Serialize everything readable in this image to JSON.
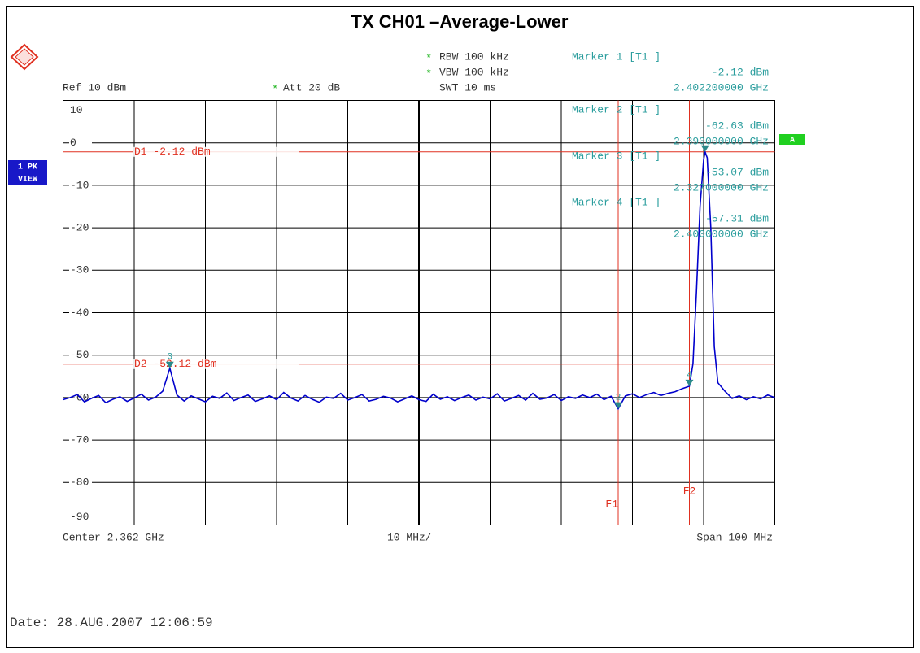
{
  "chart_data": {
    "type": "line",
    "title": "TX CH01 –Average-Lower",
    "settings": [
      {
        "star": "*",
        "text": "RBW 100 kHz"
      },
      {
        "star": "*",
        "text": "VBW 100 kHz"
      },
      {
        "star": "",
        "text": "SWT 10 ms"
      }
    ],
    "ref_label": "Ref  10 dBm",
    "att": {
      "star": "*",
      "text": "Att  20 dB"
    },
    "footer_left": "Center 2.362 GHz",
    "footer_mid": "10 MHz/",
    "footer_right": "Span 100 MHz",
    "date": "Date: 28.AUG.2007  12:06:59",
    "trace_badge": [
      "1 PK",
      "VIEW"
    ],
    "badge_a": "A",
    "xlim": [
      2.312,
      2.412
    ],
    "ylim": [
      -90,
      10
    ],
    "yticks": [
      10,
      0,
      -10,
      -20,
      -30,
      -40,
      -50,
      -60,
      -70,
      -80,
      -90
    ],
    "grid": true,
    "series": [
      {
        "name": "1",
        "color": "#0000cc",
        "x": [
          2.312,
          2.313,
          2.314,
          2.315,
          2.316,
          2.317,
          2.318,
          2.319,
          2.32,
          2.321,
          2.322,
          2.323,
          2.324,
          2.325,
          2.326,
          2.327,
          2.328,
          2.329,
          2.33,
          2.331,
          2.332,
          2.333,
          2.334,
          2.335,
          2.336,
          2.337,
          2.338,
          2.339,
          2.34,
          2.341,
          2.342,
          2.343,
          2.344,
          2.345,
          2.346,
          2.347,
          2.348,
          2.349,
          2.35,
          2.351,
          2.352,
          2.353,
          2.354,
          2.355,
          2.356,
          2.357,
          2.358,
          2.359,
          2.36,
          2.361,
          2.362,
          2.363,
          2.364,
          2.365,
          2.366,
          2.367,
          2.368,
          2.369,
          2.37,
          2.371,
          2.372,
          2.373,
          2.374,
          2.375,
          2.376,
          2.377,
          2.378,
          2.379,
          2.38,
          2.381,
          2.382,
          2.383,
          2.384,
          2.385,
          2.386,
          2.387,
          2.388,
          2.389,
          2.39,
          2.391,
          2.392,
          2.393,
          2.394,
          2.395,
          2.396,
          2.397,
          2.398,
          2.399,
          2.4,
          2.4005,
          2.401,
          2.4015,
          2.402,
          2.4022,
          2.4025,
          2.403,
          2.4035,
          2.404,
          2.405,
          2.406,
          2.407,
          2.408,
          2.409,
          2.41,
          2.411,
          2.412
        ],
        "values": [
          -60.5,
          -60.0,
          -59.3,
          -61.0,
          -60.2,
          -59.5,
          -61.2,
          -60.4,
          -59.8,
          -60.9,
          -60.1,
          -59.2,
          -60.6,
          -59.9,
          -58.5,
          -53.07,
          -59.4,
          -60.8,
          -59.6,
          -60.3,
          -61.0,
          -59.7,
          -60.2,
          -58.9,
          -60.7,
          -60.0,
          -59.4,
          -60.9,
          -60.3,
          -59.6,
          -60.5,
          -58.8,
          -60.1,
          -60.8,
          -59.5,
          -60.4,
          -61.1,
          -59.9,
          -60.2,
          -59.0,
          -60.6,
          -60.0,
          -59.3,
          -60.8,
          -60.4,
          -59.7,
          -60.1,
          -61.0,
          -60.3,
          -59.6,
          -60.5,
          -60.9,
          -59.2,
          -60.4,
          -59.8,
          -60.7,
          -60.0,
          -59.4,
          -60.6,
          -59.9,
          -60.3,
          -59.1,
          -60.8,
          -60.2,
          -59.5,
          -60.6,
          -59.0,
          -60.4,
          -60.1,
          -59.3,
          -60.7,
          -59.8,
          -60.2,
          -59.4,
          -60.0,
          -59.2,
          -60.5,
          -59.7,
          -62.63,
          -59.6,
          -59.1,
          -60.0,
          -59.3,
          -58.8,
          -59.5,
          -59.0,
          -58.6,
          -57.9,
          -57.31,
          -52.0,
          -35.0,
          -15.0,
          -4.0,
          -2.12,
          -3.5,
          -20.0,
          -48.0,
          -56.5,
          -58.5,
          -60.2,
          -59.6,
          -60.5,
          -59.8,
          -60.3,
          -59.4,
          -60.0
        ]
      }
    ],
    "markers": [
      {
        "label": "1",
        "name": "Marker 1 [T1 ]",
        "level": "-2.12 dBm",
        "freq": "2.402200000 GHz",
        "x": 2.4022,
        "y": -2.12
      },
      {
        "label": "2",
        "name": "Marker 2 [T1 ]",
        "level": "-62.63 dBm",
        "freq": "2.390000000 GHz",
        "x": 2.39,
        "y": -62.63
      },
      {
        "label": "3",
        "name": "Marker 3 [T1 ]",
        "level": "-53.07 dBm",
        "freq": "2.327000000 GHz",
        "x": 2.327,
        "y": -53.07
      },
      {
        "label": "4",
        "name": "Marker 4 [T1 ]",
        "level": "-57.31 dBm",
        "freq": "2.400000000 GHz",
        "x": 2.4,
        "y": -57.31
      }
    ],
    "display_lines": [
      {
        "label": "D1 -2.12 dBm",
        "value": -2.12
      },
      {
        "label": "D2 -52.12 dBm",
        "value": -52.12
      }
    ],
    "frequency_lines": [
      {
        "label": "F1",
        "value": 2.39
      },
      {
        "label": "F2",
        "value": 2.4
      }
    ]
  }
}
